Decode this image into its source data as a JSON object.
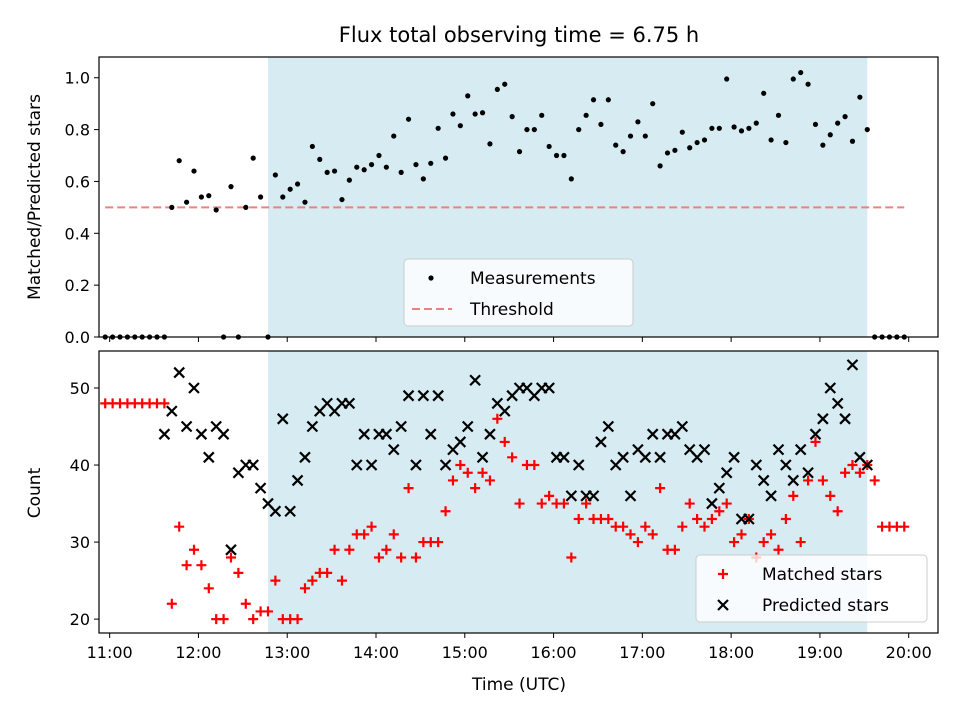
{
  "title": "Flux total observing time = 6.75 h",
  "colors": {
    "shade": "#add8e6",
    "measurement": "#000000",
    "threshold": "#f08080",
    "matched": "#ff0000",
    "predicted": "#000000"
  },
  "chart_data": [
    {
      "type": "scatter",
      "ylabel": "Matched/Predicted stars",
      "xlim": [
        10.88,
        20.33
      ],
      "ylim": [
        0,
        1.08
      ],
      "yticks": [
        0.0,
        0.2,
        0.4,
        0.6,
        0.8,
        1.0
      ],
      "ytick_labels": [
        "0.0",
        "0.2",
        "0.4",
        "0.6",
        "0.8",
        "1.0"
      ],
      "grid": false,
      "legend_position": "lower-center",
      "observing_window": {
        "start": "12:47",
        "end": "19:32"
      },
      "threshold": {
        "name": "Threshold",
        "value": 0.5,
        "x_range": [
          "10:57",
          "19:57"
        ]
      },
      "series": [
        {
          "name": "Measurements",
          "marker": "dot",
          "x": [
            "10:57",
            "11:02",
            "11:07",
            "11:12",
            "11:17",
            "11:22",
            "11:27",
            "11:32",
            "11:37",
            "11:42",
            "11:47",
            "11:52",
            "11:57",
            "12:02",
            "12:07",
            "12:12",
            "12:17",
            "12:22",
            "12:27",
            "12:32",
            "12:37",
            "12:42",
            "12:47",
            "12:52",
            "12:57",
            "13:02",
            "13:07",
            "13:12",
            "13:17",
            "13:22",
            "13:27",
            "13:32",
            "13:37",
            "13:42",
            "13:47",
            "13:52",
            "13:57",
            "14:02",
            "14:07",
            "14:12",
            "14:17",
            "14:22",
            "14:27",
            "14:32",
            "14:37",
            "14:42",
            "14:47",
            "14:52",
            "14:57",
            "15:02",
            "15:07",
            "15:12",
            "15:17",
            "15:22",
            "15:27",
            "15:32",
            "15:37",
            "15:42",
            "15:47",
            "15:52",
            "15:57",
            "16:02",
            "16:07",
            "16:12",
            "16:17",
            "16:22",
            "16:27",
            "16:32",
            "16:37",
            "16:42",
            "16:47",
            "16:52",
            "16:57",
            "17:02",
            "17:07",
            "17:12",
            "17:17",
            "17:22",
            "17:27",
            "17:32",
            "17:37",
            "17:42",
            "17:47",
            "17:52",
            "17:57",
            "18:02",
            "18:07",
            "18:12",
            "18:17",
            "18:22",
            "18:27",
            "18:32",
            "18:37",
            "18:42",
            "18:47",
            "18:52",
            "18:57",
            "19:02",
            "19:07",
            "19:12",
            "19:17",
            "19:22",
            "19:27",
            "19:32",
            "19:37",
            "19:42",
            "19:47",
            "19:52",
            "19:57"
          ],
          "y": [
            0,
            0,
            0,
            0,
            0,
            0,
            0,
            0,
            0,
            0.5,
            0.68,
            0.52,
            0.64,
            0.54,
            0.545,
            0.49,
            0,
            0.58,
            0,
            0.5,
            0.69,
            0.54,
            0,
            0.625,
            0.54,
            0.57,
            0.59,
            0.52,
            0.735,
            0.685,
            0.635,
            0.64,
            0.53,
            0.605,
            0.655,
            0.645,
            0.665,
            0.7,
            0.655,
            0.775,
            0.635,
            0.84,
            0.665,
            0.61,
            0.67,
            0.805,
            0.69,
            0.86,
            0.815,
            0.93,
            0.86,
            0.865,
            0.745,
            0.955,
            0.975,
            0.85,
            0.715,
            0.8,
            0.8,
            0.855,
            0.735,
            0.7,
            0.7,
            0.61,
            0.8,
            0.855,
            0.915,
            0.82,
            0.915,
            0.74,
            0.715,
            0.775,
            0.83,
            0.775,
            0.9,
            0.66,
            0.71,
            0.72,
            0.79,
            0.73,
            0.75,
            0.76,
            0.805,
            0.805,
            0.995,
            0.81,
            0.795,
            0.805,
            0.825,
            0.94,
            0.76,
            0.855,
            0.75,
            0.995,
            1.02,
            0.975,
            0.82,
            0.74,
            0.78,
            0.825,
            0.85,
            0.755,
            0.925,
            0.8,
            0,
            0,
            0,
            0,
            0
          ]
        }
      ]
    },
    {
      "type": "scatter",
      "xlabel": "Time (UTC)",
      "ylabel": "Count",
      "xlim": [
        10.88,
        20.33
      ],
      "ylim": [
        18.2,
        54.8
      ],
      "xtick_labels": [
        "11:00",
        "12:00",
        "13:00",
        "14:00",
        "15:00",
        "16:00",
        "17:00",
        "18:00",
        "19:00",
        "20:00"
      ],
      "yticks": [
        20,
        30,
        40,
        50
      ],
      "ytick_labels": [
        "20",
        "30",
        "40",
        "50"
      ],
      "grid": false,
      "legend_position": "lower-right",
      "observing_window": {
        "start": "12:47",
        "end": "19:32"
      },
      "series": [
        {
          "name": "Matched stars",
          "marker": "plus",
          "x": [
            "10:57",
            "11:02",
            "11:07",
            "11:12",
            "11:17",
            "11:22",
            "11:27",
            "11:32",
            "11:37",
            "11:42",
            "11:47",
            "11:52",
            "11:57",
            "12:02",
            "12:07",
            "12:12",
            "12:17",
            "12:22",
            "12:27",
            "12:32",
            "12:37",
            "12:42",
            "12:47",
            "12:52",
            "12:57",
            "13:02",
            "13:07",
            "13:12",
            "13:17",
            "13:22",
            "13:27",
            "13:32",
            "13:37",
            "13:42",
            "13:47",
            "13:52",
            "13:57",
            "14:02",
            "14:07",
            "14:12",
            "14:17",
            "14:22",
            "14:27",
            "14:32",
            "14:37",
            "14:42",
            "14:47",
            "14:52",
            "14:57",
            "15:02",
            "15:07",
            "15:12",
            "15:17",
            "15:22",
            "15:27",
            "15:32",
            "15:37",
            "15:42",
            "15:47",
            "15:52",
            "15:57",
            "16:02",
            "16:07",
            "16:12",
            "16:17",
            "16:22",
            "16:27",
            "16:32",
            "16:37",
            "16:42",
            "16:47",
            "16:52",
            "16:57",
            "17:02",
            "17:07",
            "17:12",
            "17:17",
            "17:22",
            "17:27",
            "17:32",
            "17:37",
            "17:42",
            "17:47",
            "17:52",
            "17:57",
            "18:02",
            "18:07",
            "18:12",
            "18:17",
            "18:22",
            "18:27",
            "18:32",
            "18:37",
            "18:42",
            "18:47",
            "18:52",
            "18:57",
            "19:02",
            "19:07",
            "19:12",
            "19:17",
            "19:22",
            "19:27",
            "19:32",
            "19:37",
            "19:42",
            "19:47",
            "19:52",
            "19:57"
          ],
          "y": [
            48,
            48,
            48,
            48,
            48,
            48,
            48,
            48,
            48,
            22,
            32,
            27,
            29,
            27,
            24,
            20,
            20,
            28,
            26,
            22,
            20,
            21,
            21,
            25,
            20,
            20,
            20,
            24,
            25,
            26,
            26,
            29,
            25,
            29,
            31,
            31,
            32,
            28,
            29,
            31,
            28,
            37,
            28,
            30,
            30,
            30,
            34,
            38,
            40,
            39,
            37,
            39,
            38,
            46,
            43,
            41,
            35,
            40,
            40,
            35,
            36,
            35,
            35,
            28,
            33,
            35,
            33,
            33,
            33,
            32,
            32,
            31,
            30,
            32,
            31,
            37,
            29,
            29,
            32,
            35,
            33,
            32,
            33,
            34,
            35,
            30,
            31,
            33,
            28,
            30,
            31,
            29,
            33,
            36,
            30,
            38,
            43,
            38,
            36,
            34,
            39,
            40,
            39,
            40,
            38,
            32,
            32,
            32,
            32
          ]
        },
        {
          "name": "Predicted stars",
          "marker": "x",
          "x": [
            "11:37",
            "11:42",
            "11:47",
            "11:52",
            "11:57",
            "12:02",
            "12:07",
            "12:12",
            "12:17",
            "12:22",
            "12:27",
            "12:32",
            "12:37",
            "12:42",
            "12:47",
            "12:52",
            "12:57",
            "13:02",
            "13:07",
            "13:12",
            "13:17",
            "13:22",
            "13:27",
            "13:32",
            "13:37",
            "13:42",
            "13:47",
            "13:52",
            "13:57",
            "14:02",
            "14:07",
            "14:12",
            "14:17",
            "14:22",
            "14:27",
            "14:32",
            "14:37",
            "14:42",
            "14:47",
            "14:52",
            "14:57",
            "15:02",
            "15:07",
            "15:12",
            "15:17",
            "15:22",
            "15:27",
            "15:32",
            "15:37",
            "15:42",
            "15:47",
            "15:52",
            "15:57",
            "16:02",
            "16:07",
            "16:12",
            "16:17",
            "16:22",
            "16:27",
            "16:32",
            "16:37",
            "16:42",
            "16:47",
            "16:52",
            "16:57",
            "17:02",
            "17:07",
            "17:12",
            "17:17",
            "17:22",
            "17:27",
            "17:32",
            "17:37",
            "17:42",
            "17:47",
            "17:52",
            "17:57",
            "18:02",
            "18:07",
            "18:12",
            "18:17",
            "18:22",
            "18:27",
            "18:32",
            "18:37",
            "18:42",
            "18:47",
            "18:52",
            "18:57",
            "19:02",
            "19:07",
            "19:12",
            "19:17",
            "19:22",
            "19:27",
            "19:32"
          ],
          "y": [
            44,
            47,
            52,
            45,
            50,
            44,
            41,
            45,
            44,
            29,
            39,
            40,
            40,
            37,
            35,
            34,
            46,
            34,
            38,
            41,
            45,
            47,
            48,
            47,
            48,
            48,
            40,
            44,
            40,
            44,
            44,
            42,
            45,
            49,
            40,
            49,
            44,
            49,
            40,
            42,
            43,
            45,
            51,
            41,
            44,
            48,
            47,
            49,
            50,
            50,
            49,
            50,
            50,
            41,
            41,
            36,
            40,
            36,
            36,
            43,
            45,
            40,
            41,
            36,
            42,
            41,
            44,
            41,
            44,
            44,
            45,
            42,
            41,
            42,
            35,
            37,
            39,
            41,
            33,
            33,
            40,
            38,
            36,
            42,
            40,
            38,
            42,
            39,
            44,
            46,
            50,
            48,
            46,
            53,
            41,
            40
          ]
        }
      ]
    }
  ]
}
